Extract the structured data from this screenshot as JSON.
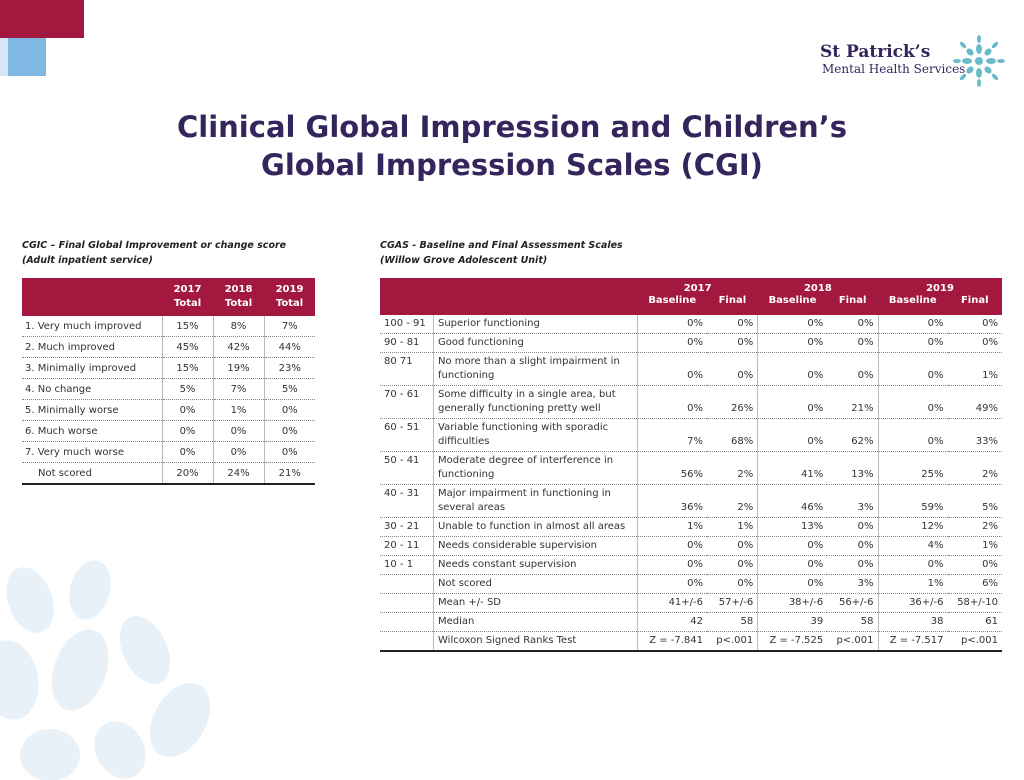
{
  "title": {
    "line1": "Clinical Global Impression and Children’s",
    "line2": "Global Impression Scales (CGI)"
  },
  "logo": {
    "name": "St Patrick’s",
    "sub": "Mental Health Services"
  },
  "cgic": {
    "caption1": "CGIC – Final Global Improvement or change score",
    "caption2": "(Adult inpatient service)",
    "headers": [
      {
        "year": "2017",
        "label": "Total"
      },
      {
        "year": "2018",
        "label": "Total"
      },
      {
        "year": "2019",
        "label": "Total"
      }
    ],
    "rows": [
      {
        "label": "1.  Very much improved",
        "v": [
          "15%",
          "8%",
          "7%"
        ]
      },
      {
        "label": "2.  Much improved",
        "v": [
          "45%",
          "42%",
          "44%"
        ]
      },
      {
        "label": "3.  Minimally improved",
        "v": [
          "15%",
          "19%",
          "23%"
        ]
      },
      {
        "label": "4.  No change",
        "v": [
          "5%",
          "7%",
          "5%"
        ]
      },
      {
        "label": "5.  Minimally worse",
        "v": [
          "0%",
          "1%",
          "0%"
        ]
      },
      {
        "label": "6.  Much worse",
        "v": [
          "0%",
          "0%",
          "0%"
        ]
      },
      {
        "label": "7.  Very much worse",
        "v": [
          "0%",
          "0%",
          "0%"
        ]
      },
      {
        "label": "     Not scored",
        "v": [
          "20%",
          "24%",
          "21%"
        ]
      }
    ]
  },
  "cgas": {
    "caption1": "CGAS - Baseline and Final Assessment Scales",
    "caption2": "(Willow Grove Adolescent Unit)",
    "years": [
      "2017",
      "2018",
      "2019"
    ],
    "sub": {
      "baseline": "Baseline",
      "final": "Final"
    },
    "rows": [
      {
        "range": "100 - 91",
        "desc": "Superior functioning",
        "v": [
          "0%",
          "0%",
          "0%",
          "0%",
          "0%",
          "0%"
        ]
      },
      {
        "range": "90 - 81",
        "desc": "Good functioning",
        "v": [
          "0%",
          "0%",
          "0%",
          "0%",
          "0%",
          "0%"
        ]
      },
      {
        "range": "80  71",
        "desc": "No more than a slight impairment in functioning",
        "v": [
          "0%",
          "0%",
          "0%",
          "0%",
          "0%",
          "1%"
        ]
      },
      {
        "range": "70 - 61",
        "desc": "Some difficulty in a single area, but generally functioning pretty well",
        "v": [
          "0%",
          "26%",
          "0%",
          "21%",
          "0%",
          "49%"
        ]
      },
      {
        "range": "60 - 51",
        "desc": "Variable functioning with sporadic difficulties",
        "v": [
          "7%",
          "68%",
          "0%",
          "62%",
          "0%",
          "33%"
        ]
      },
      {
        "range": "50 - 41",
        "desc": "Moderate degree of interference in functioning",
        "v": [
          "56%",
          "2%",
          "41%",
          "13%",
          "25%",
          "2%"
        ]
      },
      {
        "range": "40 - 31",
        "desc": "Major impairment in functioning in several areas",
        "v": [
          "36%",
          "2%",
          "46%",
          "3%",
          "59%",
          "5%"
        ]
      },
      {
        "range": "30 - 21",
        "desc": "Unable to function in almost all areas",
        "v": [
          "1%",
          "1%",
          "13%",
          "0%",
          "12%",
          "2%"
        ]
      },
      {
        "range": "20 - 11",
        "desc": "Needs considerable supervision",
        "v": [
          "0%",
          "0%",
          "0%",
          "0%",
          "4%",
          "1%"
        ]
      },
      {
        "range": "10 - 1",
        "desc": "Needs constant supervision",
        "v": [
          "0%",
          "0%",
          "0%",
          "0%",
          "0%",
          "0%"
        ]
      },
      {
        "range": "",
        "desc": "Not scored",
        "v": [
          "0%",
          "0%",
          "0%",
          "3%",
          "1%",
          "6%"
        ]
      },
      {
        "range": "",
        "desc": "Mean +/- SD",
        "v": [
          "41+/-6",
          "57+/-6",
          "38+/-6",
          "56+/-6",
          "36+/-6",
          "58+/-10"
        ]
      },
      {
        "range": "",
        "desc": "Median",
        "v": [
          "42",
          "58",
          "39",
          "58",
          "38",
          "61"
        ]
      },
      {
        "range": "",
        "desc": "Wilcoxon Signed Ranks Test",
        "v": [
          "Z = -7.841",
          "p<.001",
          "Z = -7.525",
          "p<.001",
          "Z = -7.517",
          "p<.001"
        ]
      }
    ]
  },
  "colors": {
    "crimson": "#a3183f",
    "navy": "#34265c",
    "lightblue": "#7fb9e3",
    "teal": "#5ab4c5"
  }
}
